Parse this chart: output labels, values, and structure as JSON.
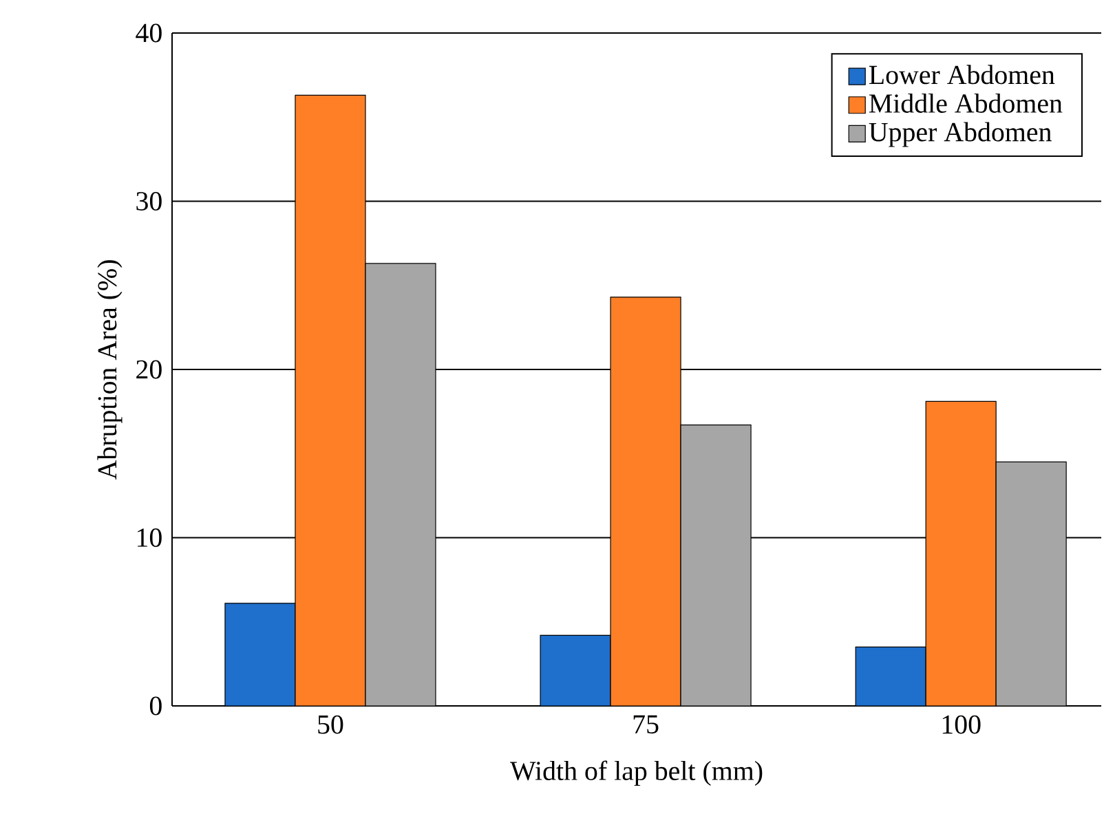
{
  "chart_data": {
    "type": "bar",
    "xlabel": "Width of lap belt (mm)",
    "ylabel": "Abruption Area (%)",
    "categories": [
      "50",
      "75",
      "100"
    ],
    "series": [
      {
        "name": "Lower Abdomen",
        "color": "#1f6fcc",
        "values": [
          6.1,
          4.2,
          3.5
        ]
      },
      {
        "name": "Middle Abdomen",
        "color": "#ff7f27",
        "values": [
          36.3,
          24.3,
          18.1
        ]
      },
      {
        "name": "Upper Abdomen",
        "color": "#a6a6a6",
        "values": [
          26.3,
          16.7,
          14.5
        ]
      }
    ],
    "ylim": [
      0,
      40
    ],
    "yticks": [
      0,
      10,
      20,
      30,
      40
    ],
    "grid": "y",
    "legend": "top right"
  }
}
